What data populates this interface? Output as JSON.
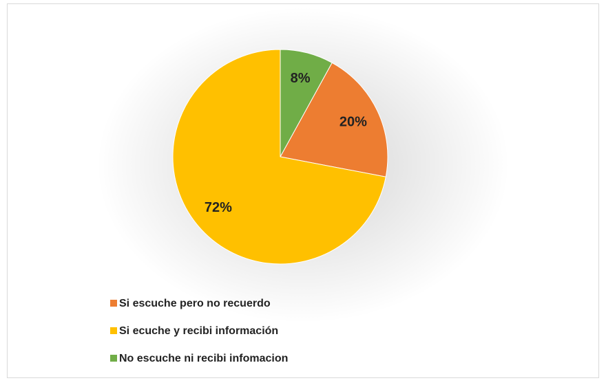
{
  "chart_data": {
    "type": "pie",
    "categories": [
      "Si escuche pero no recuerdo",
      "Si ecuche y recibi información",
      "No escuche ni recibi infomacion"
    ],
    "values": [
      20,
      72,
      8
    ],
    "value_labels": [
      "20%",
      "72%",
      "8%"
    ],
    "colors": [
      "#ed7d31",
      "#ffc000",
      "#70ad47"
    ]
  }
}
